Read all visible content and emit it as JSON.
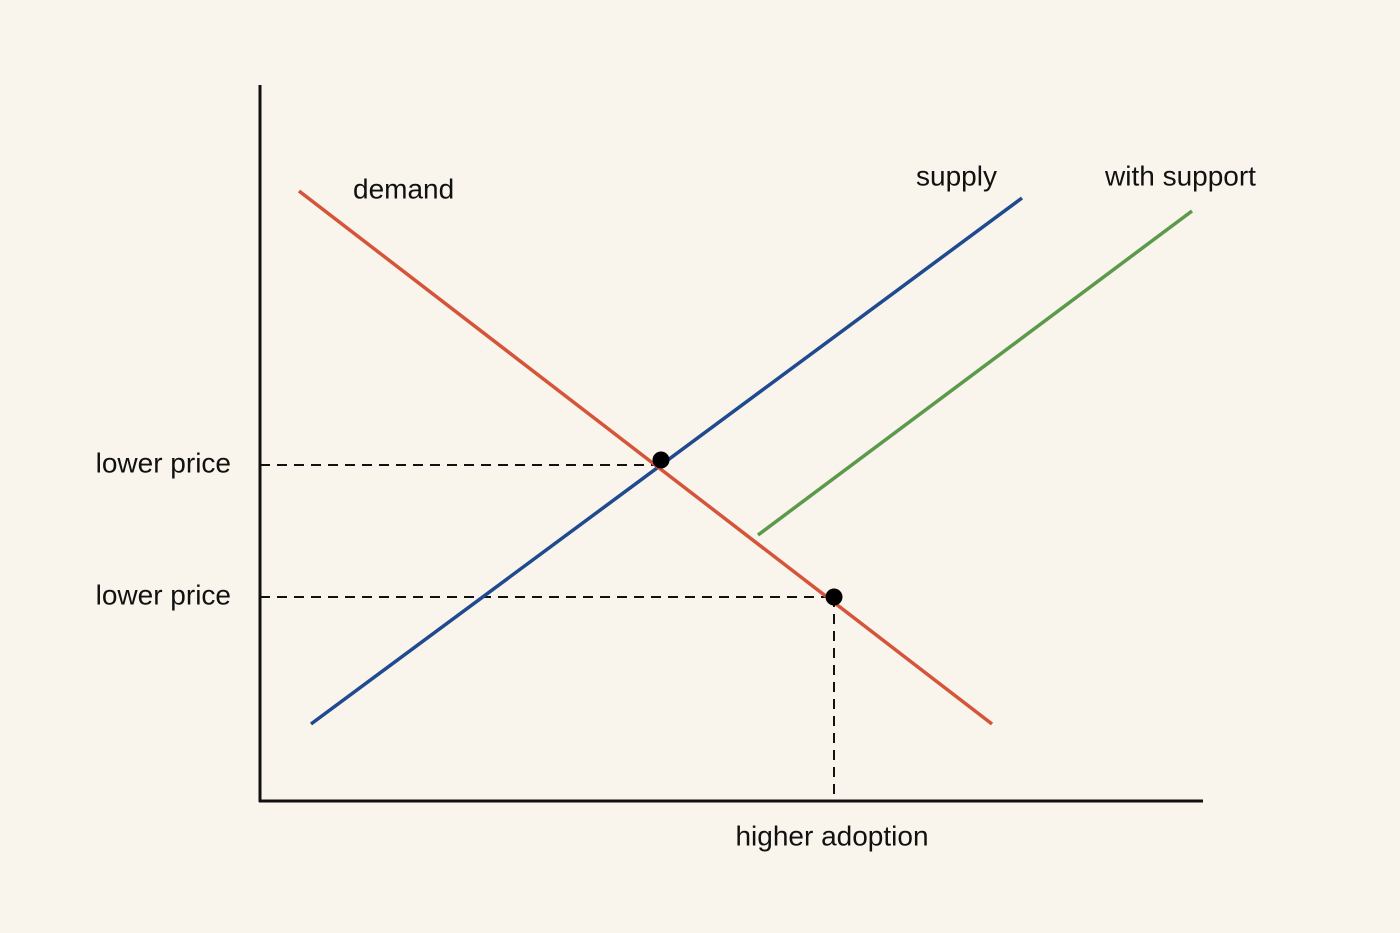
{
  "curves": [
    {
      "label": "demand"
    },
    {
      "label": "supply"
    },
    {
      "label": "with support"
    }
  ],
  "axis_labels": {
    "y": [
      "lower price",
      "lower price"
    ],
    "x": [
      "higher adoption"
    ]
  }
}
